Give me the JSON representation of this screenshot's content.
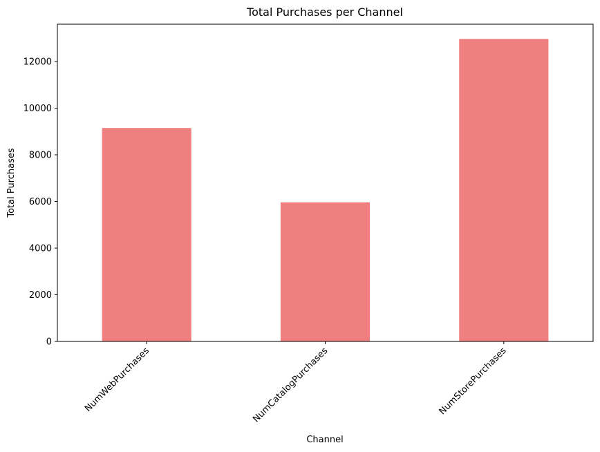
{
  "chart_data": {
    "type": "bar",
    "title": "Total Purchases per Channel",
    "xlabel": "Channel",
    "ylabel": "Total Purchases",
    "categories": [
      "NumWebPurchases",
      "NumCatalogPurchases",
      "NumStorePurchases"
    ],
    "values": [
      9150,
      5963,
      12970
    ],
    "ylim": [
      0,
      13600
    ],
    "yticks": [
      0,
      2000,
      4000,
      6000,
      8000,
      10000,
      12000
    ],
    "bar_color": "#f08080",
    "grid": false,
    "legend": "none"
  }
}
